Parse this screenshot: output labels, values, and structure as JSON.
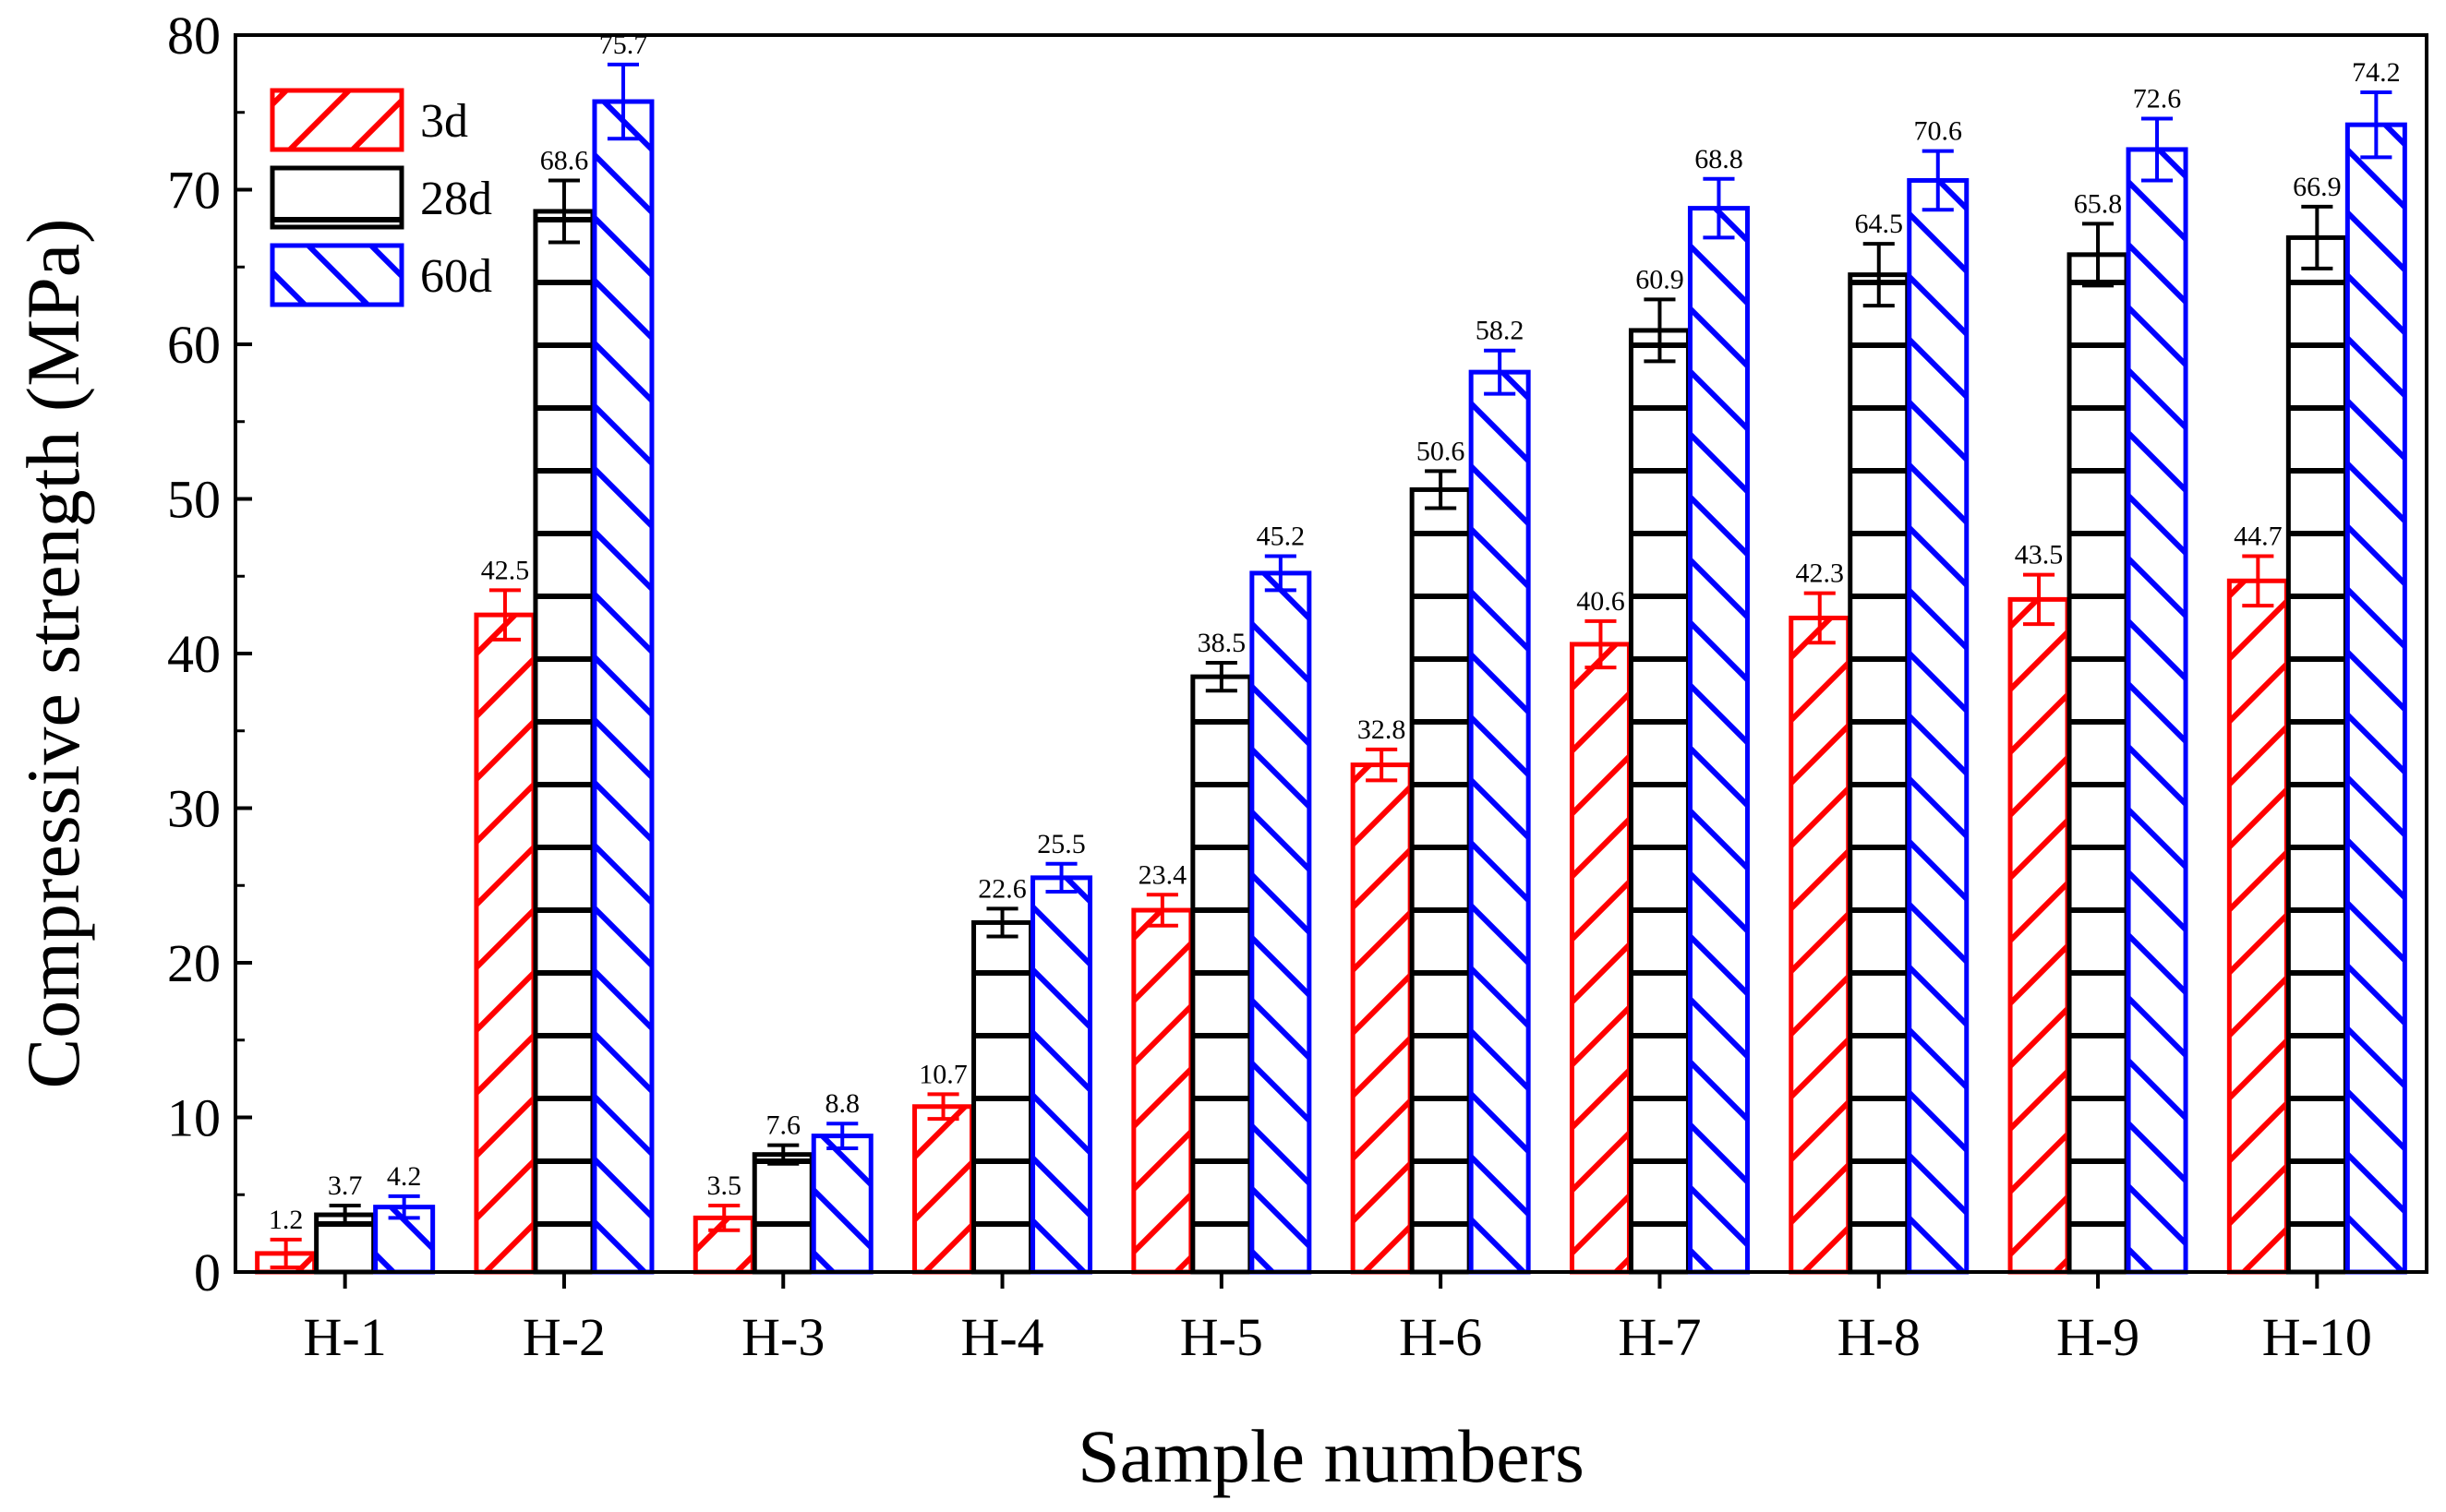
{
  "chart_data": {
    "type": "bar",
    "title": "",
    "xlabel": "Sample numbers",
    "ylabel": "Compressive strength (MPa)",
    "ylim": [
      0,
      80
    ],
    "yticks": [
      "0",
      "10",
      "20",
      "30",
      "40",
      "50",
      "60",
      "70",
      "80"
    ],
    "categories": [
      "H-1",
      "H-2",
      "H-3",
      "H-4",
      "H-5",
      "H-6",
      "H-7",
      "H-8",
      "H-9",
      "H-10"
    ],
    "legend_position": "top-left",
    "series": [
      {
        "name": "3d",
        "color": "#ff0000",
        "pattern": "diagonal-up",
        "values": [
          1.2,
          42.5,
          3.5,
          10.7,
          23.4,
          32.8,
          40.6,
          42.3,
          43.5,
          44.7
        ],
        "errors": [
          0.9,
          1.6,
          0.8,
          0.8,
          1.0,
          1.0,
          1.5,
          1.6,
          1.6,
          1.6
        ],
        "labels": [
          "1.2",
          "42.5",
          "3.5",
          "10.7",
          "23.4",
          "32.8",
          "40.6",
          "42.3",
          "43.5",
          "44.7"
        ]
      },
      {
        "name": "28d",
        "color": "#000000",
        "pattern": "horizontal",
        "values": [
          3.7,
          68.6,
          7.6,
          22.6,
          38.5,
          50.6,
          60.9,
          64.5,
          65.8,
          66.9
        ],
        "errors": [
          0.6,
          2.0,
          0.6,
          0.9,
          0.9,
          1.2,
          2.0,
          2.0,
          2.0,
          2.0
        ],
        "labels": [
          "3.7",
          "68.6",
          "7.6",
          "22.6",
          "38.5",
          "50.6",
          "60.9",
          "64.5",
          "65.8",
          "66.9"
        ]
      },
      {
        "name": "60d",
        "color": "#0000ff",
        "pattern": "diagonal-down",
        "values": [
          4.2,
          75.7,
          8.8,
          25.5,
          45.2,
          58.2,
          68.8,
          70.6,
          72.6,
          74.2
        ],
        "errors": [
          0.7,
          2.4,
          0.8,
          0.9,
          1.1,
          1.4,
          1.9,
          1.9,
          2.0,
          2.1
        ],
        "labels": [
          "4.2",
          "75.7",
          "8.8",
          "25.5",
          "45.2",
          "58.2",
          "68.8",
          "70.6",
          "72.6",
          "74.2"
        ]
      }
    ]
  }
}
